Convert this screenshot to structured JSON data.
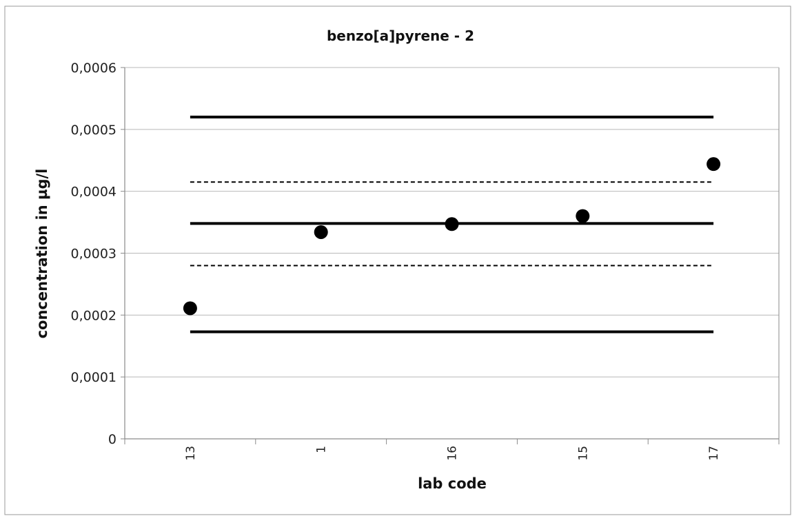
{
  "chart_data": {
    "type": "scatter",
    "title": "benzo[a]pyrene - 2",
    "xlabel": "lab code",
    "ylabel": "concentration in µg/l",
    "categories": [
      "13",
      "1",
      "16",
      "15",
      "17"
    ],
    "values": [
      0.000211,
      0.000334,
      0.000347,
      0.00036,
      0.000444
    ],
    "ylim": [
      0,
      0.0006
    ],
    "yticks": [
      0,
      0.0001,
      0.0002,
      0.0003,
      0.0004,
      0.0005,
      0.0006
    ],
    "ytick_labels": [
      "0",
      "0,0001",
      "0,0002",
      "0,0003",
      "0,0004",
      "0,0005",
      "0,0006"
    ],
    "grid": true,
    "reference_lines": [
      {
        "value": 0.00052,
        "style": "solid"
      },
      {
        "value": 0.000415,
        "style": "dashed"
      },
      {
        "value": 0.000348,
        "style": "solid"
      },
      {
        "value": 0.00028,
        "style": "dashed"
      },
      {
        "value": 0.000173,
        "style": "solid"
      }
    ]
  }
}
